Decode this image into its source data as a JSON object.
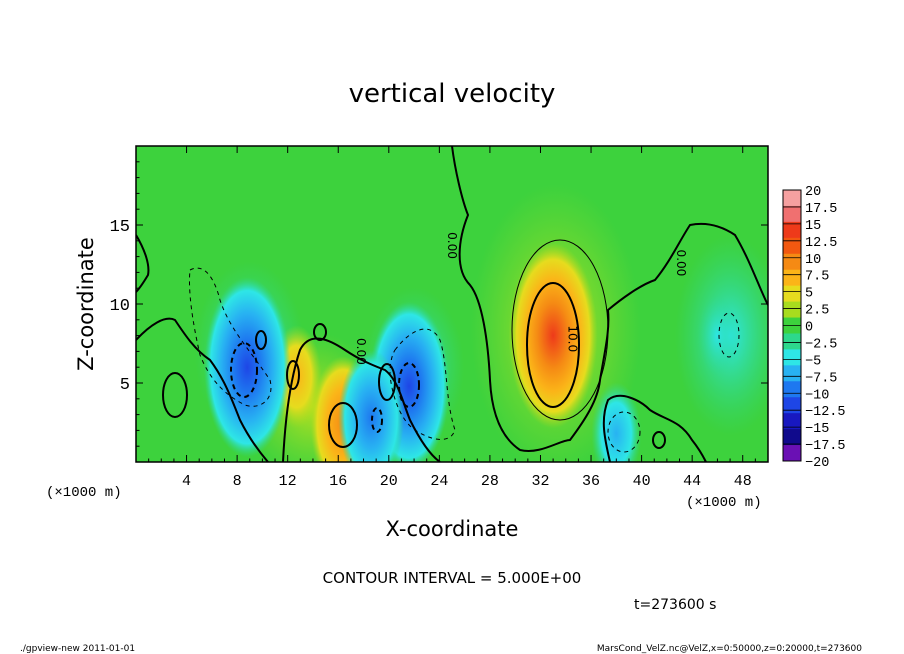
{
  "chart_data": {
    "type": "heatmap",
    "title": "vertical velocity",
    "xlabel": "X-coordinate",
    "ylabel": "Z-coordinate",
    "x_unit_label": "(×1000 m)",
    "x_ticks": [
      4,
      8,
      12,
      16,
      20,
      24,
      28,
      32,
      36,
      40,
      44,
      48
    ],
    "y_ticks": [
      5,
      10,
      15
    ],
    "xlim": [
      0,
      50
    ],
    "ylim": [
      0,
      20
    ],
    "colorbar": {
      "labels": [
        "20",
        "17.5",
        "15",
        "12.5",
        "10",
        "7.5",
        "5",
        "2.5",
        "0",
        "−2.5",
        "−5",
        "−7.5",
        "−10",
        "−12.5",
        "−15",
        "−17.5",
        "−20"
      ],
      "colors": [
        "#f5a0a0",
        "#f07070",
        "#ee3a1a",
        "#f25810",
        "#f58a14",
        "#fbb418",
        "#e6dc1e",
        "#a8dc1e",
        "#3dd23d",
        "#2dd88c",
        "#2ee6e6",
        "#28b2f2",
        "#1e78f0",
        "#1e46e6",
        "#1818c0",
        "#100a8c",
        "#6a10b4"
      ]
    },
    "contour_labels": [
      {
        "text": "0.00",
        "x": 24.7,
        "y": 13.7
      },
      {
        "text": "0.00",
        "x": 42.8,
        "y": 12.6
      },
      {
        "text": "0.00",
        "x": 17.5,
        "y": 7.0
      },
      {
        "text": "10.0",
        "x": 34.2,
        "y": 7.8
      }
    ],
    "features": [
      {
        "kind": "max",
        "x": 33.0,
        "y": 8.0,
        "value": 12.5
      },
      {
        "kind": "max",
        "x": 16.4,
        "y": 2.4,
        "value": 8.0
      },
      {
        "kind": "max",
        "x": 12.7,
        "y": 5.4,
        "value": 5.0
      },
      {
        "kind": "min",
        "x": 8.8,
        "y": 6.0,
        "value": -12.0
      },
      {
        "kind": "min",
        "x": 21.6,
        "y": 4.8,
        "value": -11.0
      },
      {
        "kind": "min",
        "x": 18.6,
        "y": 2.8,
        "value": -8.0
      },
      {
        "kind": "min",
        "x": 38.0,
        "y": 1.8,
        "value": -5.0
      },
      {
        "kind": "min",
        "x": 46.0,
        "y": 8.0,
        "value": -3.0
      }
    ],
    "grid": false
  },
  "annotations": {
    "contour_interval": "CONTOUR INTERVAL = 5.000E+00",
    "time": "t=273600 s",
    "footer_left": "./gpview-new  2011-01-01",
    "footer_right": "MarsCond_VelZ.nc@VelZ,x=0:50000,z=0:20000,t=273600"
  }
}
